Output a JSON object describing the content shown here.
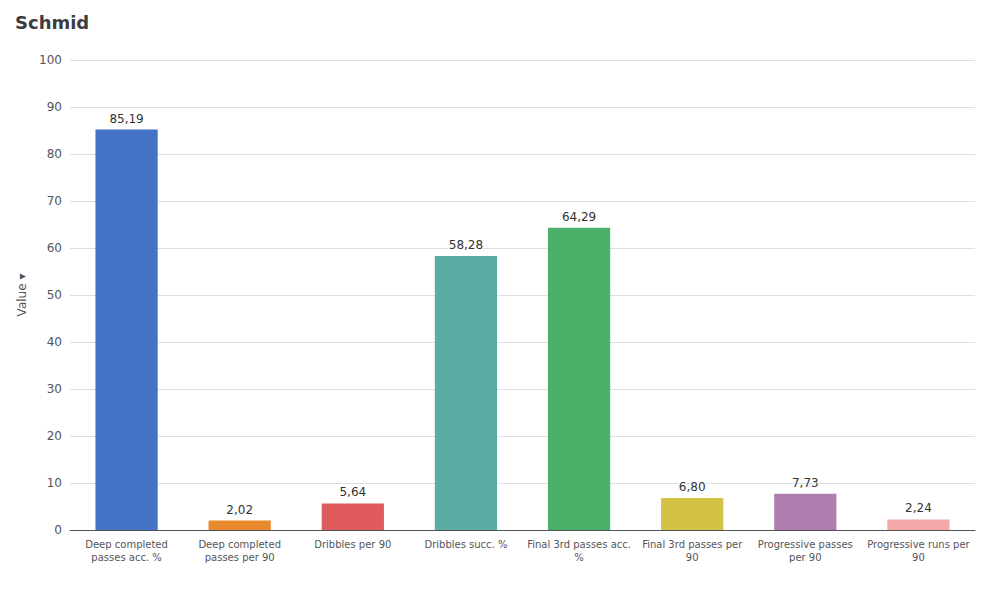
{
  "chart_data": {
    "type": "bar",
    "title": "Schmid",
    "ylabel": "Value ▾",
    "categories": [
      "Deep completed\npasses acc. %",
      "Deep completed\npasses per 90",
      "Dribbles per 90",
      "Dribbles succ. %",
      "Final 3rd passes acc.\n%",
      "Final 3rd passes per\n90",
      "Progressive passes\nper 90",
      "Progressive runs per\n90"
    ],
    "values": [
      85.19,
      2.02,
      5.64,
      58.28,
      64.29,
      6.8,
      7.73,
      2.24
    ],
    "value_labels": [
      "85,19",
      "2,02",
      "5,64",
      "58,28",
      "64,29",
      "6,80",
      "7,73",
      "2,24"
    ],
    "colors": [
      "#4472C4",
      "#E8892B",
      "#E05C5C",
      "#5BADA4",
      "#4CAF6A",
      "#D4C244",
      "#B07DB0",
      "#F4A7A7"
    ],
    "ylim": [
      0,
      100
    ],
    "yticks": [
      0,
      10,
      20,
      30,
      40,
      50,
      60,
      70,
      80,
      90,
      100
    ],
    "grid": true,
    "data_labels": true
  }
}
